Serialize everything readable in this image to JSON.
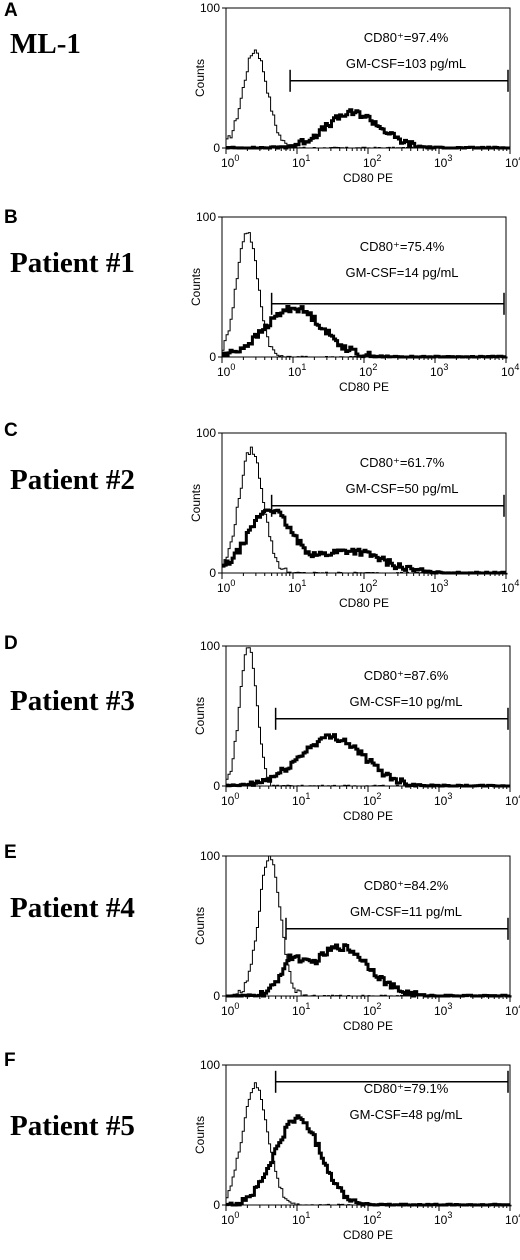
{
  "chart_data": [
    {
      "type": "histogram",
      "panel_letter": "A",
      "sample": "ML-1",
      "xlabel": "CD80 PE",
      "ylabel": "Counts",
      "xscale": "log",
      "xlim": [
        1,
        10000
      ],
      "ylim": [
        0,
        100
      ],
      "yticks": [
        "0",
        "100"
      ],
      "annotation_line1": "CD80⁺=97.4%",
      "annotation_line2": "GM-CSF=103 pg/mL",
      "gate": [
        8,
        10000
      ],
      "series": [
        {
          "style": "thin",
          "peak_x": 2.5,
          "peak_y": 70,
          "spread": 0.17,
          "tail": []
        },
        {
          "style": "thick",
          "peak_x": 60,
          "peak_y": 25,
          "spread": 0.38,
          "tail": []
        }
      ]
    },
    {
      "type": "histogram",
      "panel_letter": "B",
      "sample": "Patient #1",
      "xlabel": "CD80 PE",
      "ylabel": "Counts",
      "xscale": "log",
      "xlim": [
        1,
        10000
      ],
      "ylim": [
        0,
        100
      ],
      "yticks": [
        "0",
        "100"
      ],
      "annotation_line1": "CD80⁺=75.4%",
      "annotation_line2": "GM-CSF=14 pg/mL",
      "gate": [
        5,
        10000
      ],
      "series": [
        {
          "style": "thin",
          "peak_x": 2.2,
          "peak_y": 90,
          "spread": 0.15,
          "tail": []
        },
        {
          "style": "thick",
          "peak_x": 10,
          "peak_y": 35,
          "spread": 0.4,
          "tail": []
        }
      ]
    },
    {
      "type": "histogram",
      "panel_letter": "C",
      "sample": "Patient #2",
      "xlabel": "CD80 PE",
      "ylabel": "Counts",
      "xscale": "log",
      "xlim": [
        1,
        10000
      ],
      "ylim": [
        0,
        100
      ],
      "yticks": [
        "0",
        "100"
      ],
      "annotation_line1": "CD80⁺=61.7%",
      "annotation_line2": "GM-CSF=50 pg/mL",
      "gate": [
        5,
        10000
      ],
      "series": [
        {
          "style": "thin",
          "peak_x": 2.5,
          "peak_y": 88,
          "spread": 0.17,
          "tail": []
        },
        {
          "style": "thick",
          "peak_x": 4.5,
          "peak_y": 45,
          "spread": 0.3,
          "tail": [
            [
              60,
              16,
              0.45
            ]
          ]
        }
      ]
    },
    {
      "type": "histogram",
      "panel_letter": "D",
      "sample": "Patient #3",
      "xlabel": "CD80 PE",
      "ylabel": "Counts",
      "xscale": "log",
      "xlim": [
        1,
        10000
      ],
      "ylim": [
        0,
        100
      ],
      "yticks": [
        "0",
        "100"
      ],
      "annotation_line1": "CD80⁺=87.6%",
      "annotation_line2": "GM-CSF=10 pg/mL",
      "gate": [
        5,
        10000
      ],
      "series": [
        {
          "style": "thin",
          "peak_x": 2.0,
          "peak_y": 100,
          "spread": 0.12,
          "tail": []
        },
        {
          "style": "thick",
          "peak_x": 30,
          "peak_y": 35,
          "spread": 0.45,
          "tail": []
        }
      ]
    },
    {
      "type": "histogram",
      "panel_letter": "E",
      "sample": "Patient #4",
      "xlabel": "CD80 PE",
      "ylabel": "Counts",
      "xscale": "log",
      "xlim": [
        1,
        10000
      ],
      "ylim": [
        0,
        100
      ],
      "yticks": [
        "0",
        "100"
      ],
      "annotation_line1": "CD80⁺=84.2%",
      "annotation_line2": "GM-CSF=11 pg/mL",
      "gate": [
        7,
        10000
      ],
      "series": [
        {
          "style": "thin",
          "peak_x": 4,
          "peak_y": 100,
          "spread": 0.15,
          "tail": []
        },
        {
          "style": "thick",
          "peak_x": 40,
          "peak_y": 35,
          "spread": 0.4,
          "tail": [
            [
              8,
              20,
              0.15
            ]
          ]
        }
      ]
    },
    {
      "type": "histogram",
      "panel_letter": "F",
      "sample": "Patient #5",
      "xlabel": "CD80 PE",
      "ylabel": "Counts",
      "xscale": "log",
      "xlim": [
        1,
        10000
      ],
      "ylim": [
        0,
        100
      ],
      "yticks": [
        "0",
        "100"
      ],
      "annotation_line1": "CD80⁺=79.1%",
      "annotation_line2": "GM-CSF=48 pg/mL",
      "gate": [
        5,
        10000
      ],
      "series": [
        {
          "style": "thin",
          "peak_x": 2.5,
          "peak_y": 85,
          "spread": 0.18,
          "tail": []
        },
        {
          "style": "thick",
          "peak_x": 10,
          "peak_y": 62,
          "spread": 0.32,
          "tail": []
        }
      ]
    }
  ]
}
